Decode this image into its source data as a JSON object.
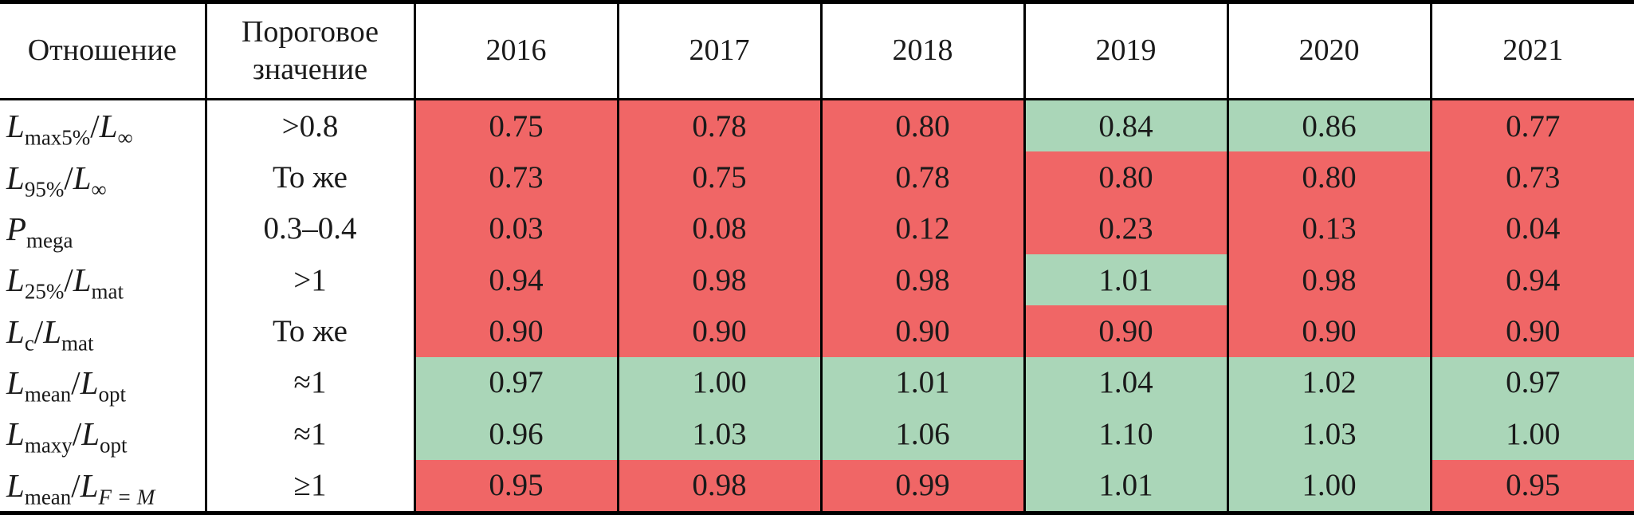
{
  "colors": {
    "fail": "#f06666",
    "pass": "#aad6b8",
    "border": "#000000",
    "text": "#1a1a1a",
    "background": "#ffffff"
  },
  "header": {
    "ratio": "Отношение",
    "threshold": "Пороговое значение",
    "years": [
      "2016",
      "2017",
      "2018",
      "2019",
      "2020",
      "2021"
    ]
  },
  "rows": [
    {
      "formula": {
        "n": "L",
        "nsub": "max5%",
        "d": "L",
        "dsub": "∞"
      },
      "threshold": ">0.8",
      "values": [
        "0.75",
        "0.78",
        "0.80",
        "0.84",
        "0.86",
        "0.77"
      ],
      "status": [
        "fail",
        "fail",
        "fail",
        "pass",
        "pass",
        "fail"
      ]
    },
    {
      "formula": {
        "n": "L",
        "nsub": "95%",
        "d": "L",
        "dsub": "∞"
      },
      "threshold": "То же",
      "values": [
        "0.73",
        "0.75",
        "0.78",
        "0.80",
        "0.80",
        "0.73"
      ],
      "status": [
        "fail",
        "fail",
        "fail",
        "fail",
        "fail",
        "fail"
      ]
    },
    {
      "formula": {
        "n": "P",
        "nsub": "mega"
      },
      "threshold": "0.3–0.4",
      "values": [
        "0.03",
        "0.08",
        "0.12",
        "0.23",
        "0.13",
        "0.04"
      ],
      "status": [
        "fail",
        "fail",
        "fail",
        "fail",
        "fail",
        "fail"
      ]
    },
    {
      "formula": {
        "n": "L",
        "nsub": "25%",
        "d": "L",
        "dsub": "mat"
      },
      "threshold": ">1",
      "values": [
        "0.94",
        "0.98",
        "0.98",
        "1.01",
        "0.98",
        "0.94"
      ],
      "status": [
        "fail",
        "fail",
        "fail",
        "pass",
        "fail",
        "fail"
      ]
    },
    {
      "formula": {
        "n": "L",
        "nsub": "c",
        "d": "L",
        "dsub": "mat"
      },
      "threshold": "То же",
      "values": [
        "0.90",
        "0.90",
        "0.90",
        "0.90",
        "0.90",
        "0.90"
      ],
      "status": [
        "fail",
        "fail",
        "fail",
        "fail",
        "fail",
        "fail"
      ]
    },
    {
      "formula": {
        "n": "L",
        "nsub": "mean",
        "d": "L",
        "dsub": "opt"
      },
      "threshold": "≈1",
      "values": [
        "0.97",
        "1.00",
        "1.01",
        "1.04",
        "1.02",
        "0.97"
      ],
      "status": [
        "pass",
        "pass",
        "pass",
        "pass",
        "pass",
        "pass"
      ]
    },
    {
      "formula": {
        "n": "L",
        "nsub": "maxy",
        "d": "L",
        "dsub": "opt"
      },
      "threshold": "≈1",
      "values": [
        "0.96",
        "1.03",
        "1.06",
        "1.10",
        "1.03",
        "1.00"
      ],
      "status": [
        "pass",
        "pass",
        "pass",
        "pass",
        "pass",
        "pass"
      ]
    },
    {
      "formula": {
        "n": "L",
        "nsub": "mean",
        "d": "L",
        "dsub": "F = M",
        "dsub_italic": true
      },
      "threshold": "≥1",
      "values": [
        "0.95",
        "0.98",
        "0.99",
        "1.01",
        "1.00",
        "0.95"
      ],
      "status": [
        "fail",
        "fail",
        "fail",
        "pass",
        "pass",
        "fail"
      ]
    }
  ],
  "chart_data": {
    "type": "table",
    "columns": [
      "Отношение",
      "Пороговое значение",
      "2016",
      "2017",
      "2018",
      "2019",
      "2020",
      "2021"
    ],
    "rows": [
      [
        "L max5% / L ∞",
        ">0.8",
        0.75,
        0.78,
        0.8,
        0.84,
        0.86,
        0.77
      ],
      [
        "L 95% / L ∞",
        "То же",
        0.73,
        0.75,
        0.78,
        0.8,
        0.8,
        0.73
      ],
      [
        "P mega",
        "0.3–0.4",
        0.03,
        0.08,
        0.12,
        0.23,
        0.13,
        0.04
      ],
      [
        "L 25% / L mat",
        ">1",
        0.94,
        0.98,
        0.98,
        1.01,
        0.98,
        0.94
      ],
      [
        "L c / L mat",
        "То же",
        0.9,
        0.9,
        0.9,
        0.9,
        0.9,
        0.9
      ],
      [
        "L mean / L opt",
        "≈1",
        0.97,
        1.0,
        1.01,
        1.04,
        1.02,
        0.97
      ],
      [
        "L maxy / L opt",
        "≈1",
        0.96,
        1.03,
        1.06,
        1.1,
        1.03,
        1.0
      ],
      [
        "L mean / L F=M",
        "≥1",
        0.95,
        0.98,
        0.99,
        1.01,
        1.0,
        0.95
      ]
    ],
    "cell_fill_legend": {
      "fail": "red — indicator below threshold",
      "pass": "green — indicator meets threshold"
    }
  }
}
